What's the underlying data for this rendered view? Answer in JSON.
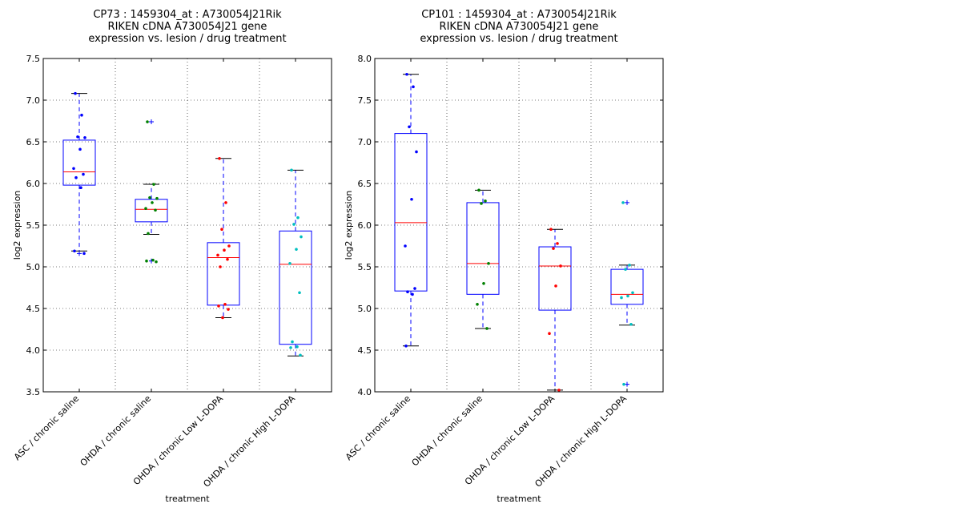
{
  "chart_data": [
    {
      "type": "box",
      "title_lines": [
        "CP73 : 1459304_at : A730054J21Rik",
        "RIKEN cDNA A730054J21 gene",
        "expression vs. lesion / drug treatment"
      ],
      "xlabel": "treatment",
      "ylabel": "log2 expression",
      "ylim": [
        3.5,
        7.5
      ],
      "yticks": [
        "3.5",
        "4.0",
        "4.5",
        "5.0",
        "5.5",
        "6.0",
        "6.5",
        "7.0",
        "7.5"
      ],
      "grid": true,
      "categories": [
        "ASC / chronic saline",
        "OHDA / chronic saline",
        "OHDA / chronic Low L-DOPA",
        "OHDA / chronic High L-DOPA"
      ],
      "series": [
        {
          "color": "#0000ff",
          "q1": 5.98,
          "median": 6.14,
          "q3": 6.52,
          "whisker_low": 5.19,
          "whisker_high": 7.08,
          "points": [
            7.08,
            6.82,
            6.56,
            6.55,
            6.41,
            6.18,
            6.11,
            6.07,
            5.95,
            5.19,
            5.16
          ],
          "outliers": [
            5.16
          ]
        },
        {
          "color": "#008000",
          "q1": 5.54,
          "median": 5.69,
          "q3": 5.81,
          "whisker_low": 5.39,
          "whisker_high": 5.99,
          "points": [
            6.74,
            5.99,
            5.83,
            5.82,
            5.77,
            5.7,
            5.68,
            5.4,
            5.08,
            5.07,
            5.06
          ],
          "outliers": [
            6.74,
            5.07
          ]
        },
        {
          "color": "#ff0000",
          "q1": 4.54,
          "median": 5.11,
          "q3": 5.29,
          "whisker_low": 4.39,
          "whisker_high": 6.3,
          "points": [
            6.3,
            5.77,
            5.45,
            5.25,
            5.2,
            5.14,
            5.09,
            5.0,
            4.55,
            4.53,
            4.49,
            4.39
          ],
          "outliers": []
        },
        {
          "color": "#00bfbf",
          "q1": 4.07,
          "median": 5.03,
          "q3": 5.43,
          "whisker_low": 3.93,
          "whisker_high": 6.16,
          "points": [
            6.16,
            5.59,
            5.51,
            5.36,
            5.21,
            5.04,
            4.69,
            4.1,
            4.04,
            4.03,
            3.94
          ],
          "outliers": []
        }
      ]
    },
    {
      "type": "box",
      "title_lines": [
        "CP101 : 1459304_at : A730054J21Rik",
        "RIKEN cDNA A730054J21 gene",
        "expression vs. lesion / drug treatment"
      ],
      "xlabel": "treatment",
      "ylabel": "log2 expression",
      "ylim": [
        4.0,
        8.0
      ],
      "yticks": [
        "4.0",
        "4.5",
        "5.0",
        "5.5",
        "6.0",
        "6.5",
        "7.0",
        "7.5",
        "8.0"
      ],
      "grid": true,
      "categories": [
        "ASC / chronic saline",
        "OHDA / chronic saline",
        "OHDA / chronic Low L-DOPA",
        "OHDA / chronic High L-DOPA"
      ],
      "series": [
        {
          "color": "#0000ff",
          "q1": 5.21,
          "median": 6.03,
          "q3": 7.1,
          "whisker_low": 4.55,
          "whisker_high": 7.81,
          "points": [
            7.81,
            7.66,
            7.18,
            6.88,
            6.31,
            5.75,
            5.24,
            5.2,
            5.17,
            4.55
          ],
          "outliers": []
        },
        {
          "color": "#008000",
          "q1": 5.17,
          "median": 5.54,
          "q3": 6.27,
          "whisker_low": 4.76,
          "whisker_high": 6.42,
          "points": [
            6.42,
            6.29,
            6.26,
            5.54,
            5.3,
            5.05,
            4.76
          ],
          "outliers": []
        },
        {
          "color": "#ff0000",
          "q1": 4.98,
          "median": 5.51,
          "q3": 5.74,
          "whisker_low": 4.02,
          "whisker_high": 5.95,
          "points": [
            5.95,
            5.78,
            5.72,
            5.51,
            5.27,
            4.7,
            4.02
          ],
          "outliers": []
        },
        {
          "color": "#00bfbf",
          "q1": 5.05,
          "median": 5.17,
          "q3": 5.47,
          "whisker_low": 4.8,
          "whisker_high": 5.52,
          "points": [
            6.27,
            5.52,
            5.47,
            5.19,
            5.15,
            5.13,
            4.81,
            4.09
          ],
          "outliers": [
            6.27,
            4.09
          ]
        }
      ]
    }
  ]
}
